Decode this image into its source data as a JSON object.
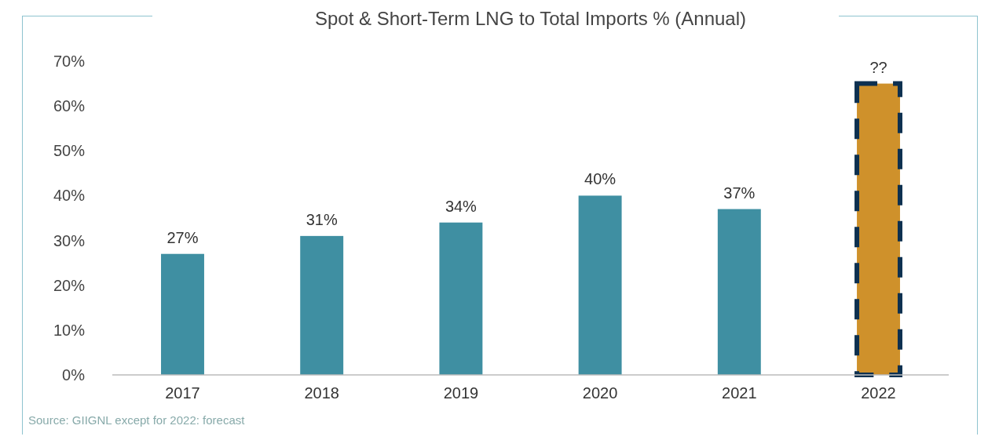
{
  "chart_data": {
    "type": "bar",
    "title": "Spot & Short-Term LNG to Total Imports % (Annual)",
    "categories": [
      "2017",
      "2018",
      "2019",
      "2020",
      "2021",
      "2022"
    ],
    "values": [
      27,
      31,
      34,
      40,
      37,
      65
    ],
    "colors": [
      "#3f8fa2",
      "#3f8fa2",
      "#3f8fa2",
      "#3f8fa2",
      "#3f8fa2",
      "#cf912b"
    ],
    "value_labels": [
      "27%",
      "31%",
      "34%",
      "40%",
      "37%",
      "??"
    ],
    "ylim": [
      0,
      70
    ],
    "yticks": [
      {
        "value": 0,
        "label": "0%"
      },
      {
        "value": 10,
        "label": "10%"
      },
      {
        "value": 20,
        "label": "20%"
      },
      {
        "value": 30,
        "label": "30%"
      },
      {
        "value": 40,
        "label": "40%"
      },
      {
        "value": 50,
        "label": "50%"
      },
      {
        "value": 60,
        "label": "60%"
      },
      {
        "value": 70,
        "label": "70%"
      }
    ],
    "grid": false,
    "annotations": [
      "Source: GIIGNL except for 2022: forecast"
    ]
  }
}
